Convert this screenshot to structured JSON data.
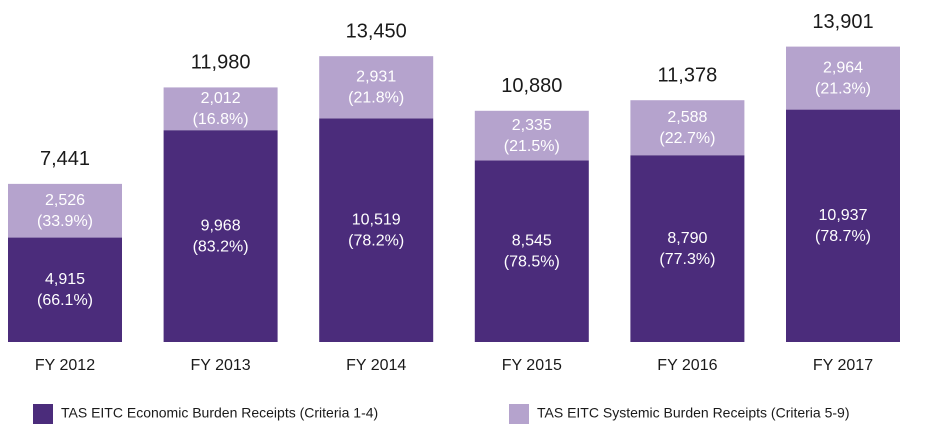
{
  "chart_data": {
    "type": "stacked_bar",
    "categories": [
      "FY 2012",
      "FY 2013",
      "FY 2014",
      "FY 2015",
      "FY 2016",
      "FY 2017"
    ],
    "series": [
      {
        "name": "TAS EITC Economic Burden Receipts (Criteria 1-4)",
        "color": "#4b2c7b",
        "values": [
          4915,
          9968,
          10519,
          8545,
          8790,
          10937
        ],
        "value_labels": [
          "4,915",
          "9,968",
          "10,519",
          "8,545",
          "8,790",
          "10,937"
        ],
        "percent_labels": [
          "(66.1%)",
          "(83.2%)",
          "(78.2%)",
          "(78.5%)",
          "(77.3%)",
          "(78.7%)"
        ]
      },
      {
        "name": "TAS EITC Systemic Burden Receipts (Criteria 5-9)",
        "color": "#b5a3cd",
        "values": [
          2526,
          2012,
          2931,
          2335,
          2588,
          2964
        ],
        "value_labels": [
          "2,526",
          "2,012",
          "2,931",
          "2,335",
          "2,588",
          "2,964"
        ],
        "percent_labels": [
          "(33.9%)",
          "(16.8%)",
          "(21.8%)",
          "(21.5%)",
          "(22.7%)",
          "(21.3%)"
        ]
      }
    ],
    "totals": [
      7441,
      11980,
      13450,
      10880,
      11378,
      13901
    ],
    "total_labels": [
      "7,441",
      "11,980",
      "13,450",
      "10,880",
      "11,378",
      "13,901"
    ],
    "ylim": [
      0,
      16000
    ]
  }
}
